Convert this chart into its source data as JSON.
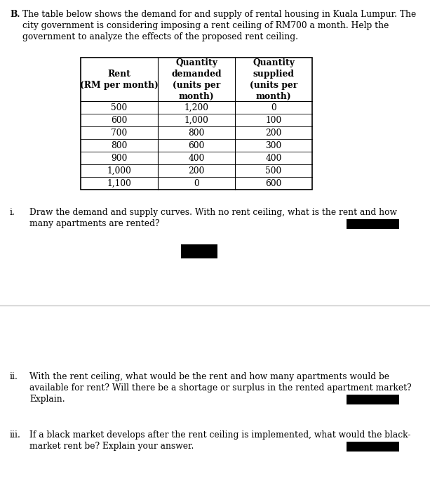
{
  "col_headers": [
    "Rent\n(RM per month)",
    "Quantity\ndemanded\n(units per\nmonth)",
    "Quantity\nsupplied\n(units per\nmonth)"
  ],
  "table_data": [
    [
      "500",
      "1,200",
      "0"
    ],
    [
      "600",
      "1,000",
      "100"
    ],
    [
      "700",
      "800",
      "200"
    ],
    [
      "800",
      "600",
      "300"
    ],
    [
      "900",
      "400",
      "400"
    ],
    [
      "1,000",
      "200",
      "500"
    ],
    [
      "1,100",
      "0",
      "600"
    ]
  ],
  "background_color": "#ffffff",
  "font_size": 8.8,
  "table_font_size": 8.8
}
